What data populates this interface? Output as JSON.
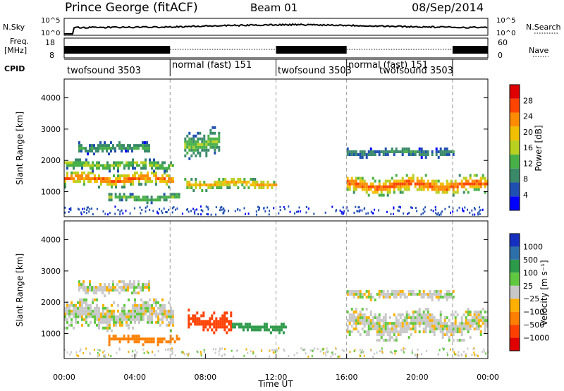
{
  "header": {
    "station": "Prince George (fitACF)",
    "beam": "Beam 01",
    "date": "08/Sep/2014"
  },
  "top_panels": {
    "nsky_label": "N.Sky",
    "nsky_ticks": [
      "10^5",
      "10^0"
    ],
    "nsearch_label": "N.Search",
    "nsearch_ticks": [
      "10^5",
      "10^0"
    ],
    "freq_label_1": "Freq.",
    "freq_label_2": "[MHz]",
    "freq_ticks": [
      "18",
      "8"
    ],
    "nave_label": "Nave",
    "nave_ticks": [
      "60",
      "0"
    ],
    "cpid_label": "CPID",
    "cpid_segments": [
      {
        "label": "twofsound 3503",
        "start": 0,
        "end": 6
      },
      {
        "label": "normal (fast) 151",
        "start": 6,
        "end": 12
      },
      {
        "label": "twofsound 3503",
        "start": 12,
        "end": 16
      },
      {
        "label": "normal (fast) 151",
        "start": 16,
        "end": 22
      },
      {
        "label": "twofsound 3503",
        "start": 16,
        "end": 22
      }
    ]
  },
  "chart_data": [
    {
      "type": "heatmap",
      "parameter": "power",
      "ylabel": "Slant Range [km]",
      "xlim": [
        0,
        24
      ],
      "ylim": [
        200,
        4600
      ],
      "yticks": [
        "1000",
        "2000",
        "3000",
        "4000"
      ],
      "colorbar_label": "Power [dB]",
      "colorbar_ticks": [
        "4",
        "8",
        "12",
        "16",
        "20",
        "24",
        "28"
      ],
      "colors": [
        "#0000ff",
        "#1f4fb0",
        "#3a8a6a",
        "#48b048",
        "#b8d020",
        "#f0c000",
        "#ff8c00",
        "#ff4400",
        "#e00000"
      ],
      "echo_bands": [
        {
          "t_start": 0.0,
          "t_end": 6.2,
          "r_center": 1450,
          "r_width": 260,
          "level": 26
        },
        {
          "t_start": 0.0,
          "t_end": 6.2,
          "r_center": 1900,
          "r_width": 200,
          "level": 16
        },
        {
          "t_start": 0.8,
          "t_end": 4.8,
          "r_center": 2450,
          "r_width": 200,
          "level": 12
        },
        {
          "t_start": 2.5,
          "t_end": 6.5,
          "r_center": 850,
          "r_width": 160,
          "level": 14
        },
        {
          "t_start": 6.8,
          "t_end": 12.0,
          "r_center": 1300,
          "r_width": 220,
          "level": 22
        },
        {
          "t_start": 6.8,
          "t_end": 8.8,
          "r_center": 2600,
          "r_width": 500,
          "level": 14
        },
        {
          "t_start": 16.0,
          "t_end": 24.0,
          "r_center": 1250,
          "r_width": 320,
          "level": 27
        },
        {
          "t_start": 16.0,
          "t_end": 22.0,
          "r_center": 2300,
          "r_width": 160,
          "level": 10
        }
      ]
    },
    {
      "type": "heatmap",
      "parameter": "velocity",
      "xlabel": "Time UT",
      "ylabel": "Slant Range [km]",
      "xlim": [
        0,
        24
      ],
      "ylim": [
        200,
        4600
      ],
      "xticks": [
        "00:00",
        "04:00",
        "08:00",
        "12:00",
        "16:00",
        "20:00",
        "00:00"
      ],
      "yticks": [
        "1000",
        "2000",
        "3000",
        "4000"
      ],
      "colorbar_label": "Velocity [m s⁻¹]",
      "colorbar_ticks": [
        "1000",
        "500",
        "100",
        "25",
        "−25",
        "−100",
        "−500",
        "−1000"
      ],
      "colors": [
        "#1530c0",
        "#2d6fa8",
        "#2d9a4a",
        "#60c840",
        "#c8c8c8",
        "#ffb000",
        "#ff8000",
        "#ff4000",
        "#e00000"
      ],
      "echo_bands": [
        {
          "t_start": 0.0,
          "t_end": 6.2,
          "r_center": 1650,
          "r_width": 520,
          "level": 0
        },
        {
          "t_start": 0.8,
          "t_end": 4.8,
          "r_center": 2500,
          "r_width": 250,
          "level": 0
        },
        {
          "t_start": 2.5,
          "t_end": 6.5,
          "r_center": 850,
          "r_width": 160,
          "level": -150
        },
        {
          "t_start": 7.0,
          "t_end": 9.5,
          "r_center": 1450,
          "r_width": 380,
          "level": -700
        },
        {
          "t_start": 9.5,
          "t_end": 12.5,
          "r_center": 1250,
          "r_width": 180,
          "level": 150
        },
        {
          "t_start": 16.0,
          "t_end": 24.0,
          "r_center": 1350,
          "r_width": 520,
          "level": 0
        },
        {
          "t_start": 16.0,
          "t_end": 22.0,
          "r_center": 2300,
          "r_width": 180,
          "level": 0
        }
      ]
    }
  ]
}
